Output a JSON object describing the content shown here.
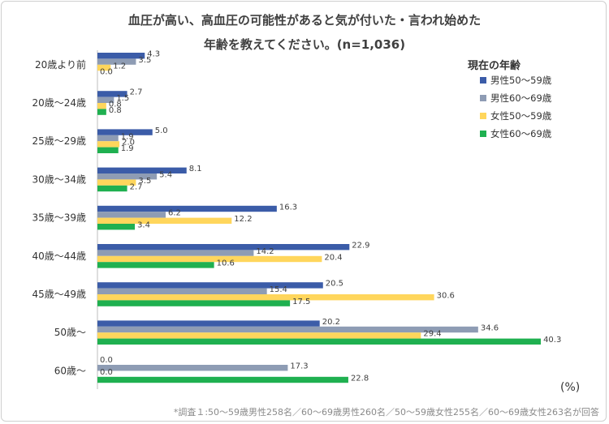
{
  "title_line1": "血圧が高い、高血圧の可能性があると気が付いた・言われ始めた",
  "title_line2": "年齢を教えてください。(n=1,036)",
  "unit": "(%)",
  "footnote": "*調査１:50〜59歳男性258名／60〜69歳男性260名／50〜59歳女性255名／60〜69歳女性263名が回答",
  "chart_data": {
    "type": "bar",
    "orientation": "horizontal",
    "legend_title": "現在の年齢",
    "legend_position": "top-right",
    "categories": [
      "20歳より前",
      "20歳〜24歳",
      "25歳〜29歳",
      "30歳〜34歳",
      "35歳〜39歳",
      "40歳〜44歳",
      "45歳〜49歳",
      "50歳〜",
      "60歳〜"
    ],
    "series": [
      {
        "name": "男性50〜59歳",
        "color": "#3b5ca8",
        "values": [
          4.3,
          2.7,
          5.0,
          8.1,
          16.3,
          22.9,
          20.5,
          20.2,
          0.0
        ]
      },
      {
        "name": "男性60〜69歳",
        "color": "#8e9cb4",
        "values": [
          3.5,
          1.5,
          1.9,
          5.4,
          6.2,
          14.2,
          15.4,
          34.6,
          17.3
        ]
      },
      {
        "name": "女性50〜59歳",
        "color": "#ffd65c",
        "values": [
          1.2,
          0.8,
          2.0,
          3.5,
          12.2,
          20.4,
          30.6,
          29.4,
          0.0
        ]
      },
      {
        "name": "女性60〜69歳",
        "color": "#1fb050",
        "values": [
          0.0,
          0.8,
          1.9,
          2.7,
          3.4,
          10.6,
          17.5,
          40.3,
          22.8
        ]
      }
    ],
    "xlim": [
      0,
      45
    ]
  }
}
